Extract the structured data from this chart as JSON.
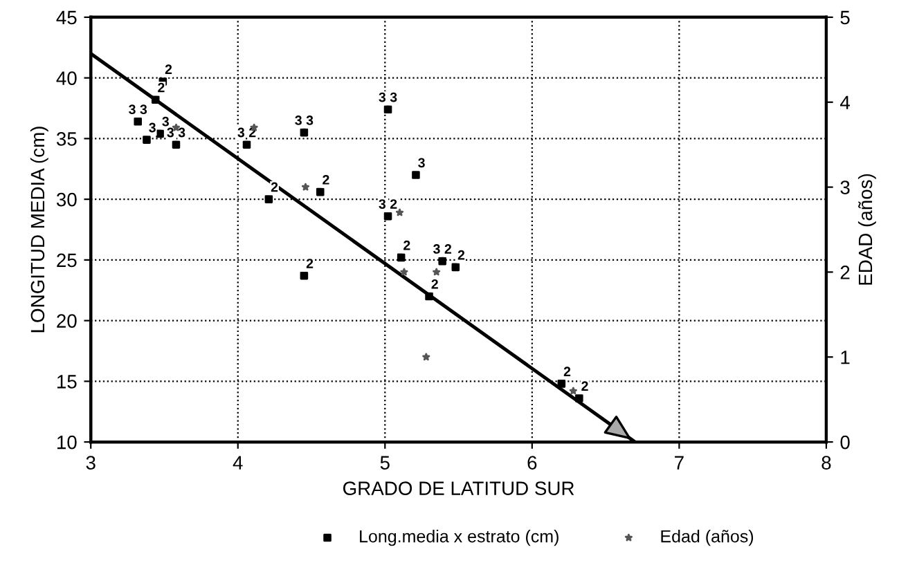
{
  "chart_data": {
    "type": "scatter",
    "xlabel": "GRADO DE LATITUD SUR",
    "ylabel": "LONGITUD MEDIA (cm)",
    "y2label": "EDAD (años)",
    "xlim": [
      3,
      8
    ],
    "xticks": [
      3,
      4,
      5,
      6,
      7,
      8
    ],
    "ylim": [
      10,
      45
    ],
    "yticks": [
      10,
      15,
      20,
      25,
      30,
      35,
      40,
      45
    ],
    "y2lim": [
      0,
      5
    ],
    "y2ticks": [
      0,
      1,
      2,
      3,
      4,
      5
    ],
    "grid": true,
    "legend": "bottom",
    "line_style": "dotted",
    "series": [
      {
        "name": "Long.media x estrato (cm)",
        "color": "#000000",
        "marker": "square",
        "x": [
          3.32,
          3.38,
          3.47,
          3.58,
          3.49,
          3.44,
          4.06,
          4.45,
          4.21,
          4.56,
          4.45,
          5.02,
          5.02,
          5.21,
          5.11,
          5.3,
          5.39,
          5.48,
          6.2,
          6.32
        ],
        "values": [
          36.4,
          34.9,
          35.4,
          34.5,
          39.7,
          38.2,
          34.5,
          35.5,
          30.0,
          30.6,
          23.7,
          37.4,
          28.6,
          32.0,
          25.2,
          22.0,
          24.9,
          24.4,
          14.8,
          13.6
        ]
      },
      {
        "name": "Edad (años)",
        "color": "#555555",
        "marker": "star",
        "axis": "y2",
        "x": [
          3.58,
          4.11,
          4.46,
          5.1,
          5.13,
          5.28,
          5.35,
          6.28
        ],
        "values": [
          3.7,
          3.7,
          3.0,
          2.7,
          2.0,
          1.0,
          2.0,
          0.6
        ]
      },
      {
        "type": "line",
        "color": "#000000",
        "marker": "none",
        "line_style": "solid",
        "x": [
          3,
          6.7
        ],
        "values": [
          42,
          10
        ]
      }
    ],
    "annotations": [
      {
        "text": "3",
        "x": 3.32,
        "y": 36.4
      },
      {
        "text": "3",
        "x": 3.32,
        "y": 36.4
      },
      {
        "text": "3",
        "x": 3.38,
        "y": 34.9
      },
      {
        "text": "3",
        "x": 3.47,
        "y": 35.4
      },
      {
        "text": "3",
        "x": 3.58,
        "y": 34.5
      },
      {
        "text": "3",
        "x": 3.58,
        "y": 34.5
      },
      {
        "text": "2",
        "x": 3.49,
        "y": 39.7
      },
      {
        "text": "2",
        "x": 3.44,
        "y": 38.2
      },
      {
        "text": "2",
        "x": 4.06,
        "y": 34.5
      },
      {
        "text": "3",
        "x": 4.06,
        "y": 34.5
      },
      {
        "text": "3",
        "x": 4.45,
        "y": 35.5
      },
      {
        "text": "3",
        "x": 4.45,
        "y": 35.5
      },
      {
        "text": "2",
        "x": 4.21,
        "y": 30.0
      },
      {
        "text": "2",
        "x": 4.56,
        "y": 30.6
      },
      {
        "text": "2",
        "x": 4.45,
        "y": 23.7
      },
      {
        "text": "3",
        "x": 5.02,
        "y": 37.4
      },
      {
        "text": "3",
        "x": 5.02,
        "y": 37.4
      },
      {
        "text": "2",
        "x": 5.02,
        "y": 28.6
      },
      {
        "text": "3",
        "x": 5.02,
        "y": 28.6
      },
      {
        "text": "3",
        "x": 5.21,
        "y": 32.0
      },
      {
        "text": "2",
        "x": 5.11,
        "y": 25.2
      },
      {
        "text": "2",
        "x": 5.3,
        "y": 22.0
      },
      {
        "text": "2",
        "x": 5.39,
        "y": 24.9
      },
      {
        "text": "3",
        "x": 5.39,
        "y": 24.9
      },
      {
        "text": "2",
        "x": 5.48,
        "y": 24.4
      },
      {
        "text": "2",
        "x": 6.2,
        "y": 14.8
      },
      {
        "text": "2",
        "x": 6.32,
        "y": 13.6
      }
    ]
  }
}
